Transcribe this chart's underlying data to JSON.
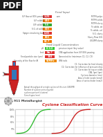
{
  "background": "#ffffff",
  "pdf_bg": "#1a1a1a",
  "pdf_fg": "#ffffff",
  "title": "Feed Input",
  "section_title": "Cyclone Classification Curve",
  "logo_text": "911 Metallurgist",
  "left_labels": [
    "S/F flow at 80% passing",
    "S/F solids%",
    "U/F solids%",
    "S.G. of solids",
    "Spigot circulating load"
  ],
  "left_values": [
    "1.25",
    "040",
    "5.6",
    "065",
    "0.85",
    "800",
    "82.7"
  ],
  "left_value_colors": [
    "#dd3333",
    "#ee7700",
    "#33aa33",
    "#ee7700",
    "#dd3333",
    "#ee7700",
    "#ee7700"
  ],
  "right_labels": [
    "MTPH pulps",
    "MTPH solids",
    "MTPH slurry",
    "% solids, wt",
    "% solids, vol",
    "S.G. slurry",
    "Slurry Flow G/G",
    "USGPM slurry"
  ],
  "mid_section_labels": [
    "Feed Liquid Concentration"
  ],
  "ph_label": "pH",
  "feed_label": "feed",
  "fps_label": "Feed particle size (pm)",
  "visc_label": "Viscosity of the flow for AI",
  "mid_values": [
    "8 0.0",
    "No.7",
    "184",
    "50MHz"
  ],
  "mid_value_colors": [
    "#33cc33",
    "#dd3333",
    "#dd3333",
    "#ee8800"
  ],
  "cpa_text": "CPA application from S/F 80% passing",
  "prev_text": "previous input (key value)",
  "conn_text": "Connected:",
  "conn_text2": "to (minimum C1, C2, C3)",
  "wa_text": "WA (wt/s",
  "annotations": [
    "C1: Correction for feed density",
    "C2: Correction for influence of pressure drop",
    "C3: Correction for top or solids",
    "CPA, (pm) (pm)",
    "Cyclone diameter (mm)",
    "Area of inlet nozzle (mm2)",
    "Area of vortex finder (mm2)"
  ],
  "bottom_annotations": [
    "Actual throughput of a single cyclone of this size (USGPM)",
    "Number of cyclone units required",
    "cyclones per unit (clusters)",
    "Size of apex (mm)"
  ],
  "cyclone_red": "#cc2222",
  "cyclone_blue": "#3377bb",
  "cyclone_dark": "#881111",
  "grid_color": "#cccccc",
  "curve_colors": [
    "#33bb33",
    "#cc2222"
  ],
  "curve_y_labels": [
    "100%",
    "80%",
    "60%",
    "??%"
  ],
  "text_color": "#555555",
  "dark_text": "#333333"
}
